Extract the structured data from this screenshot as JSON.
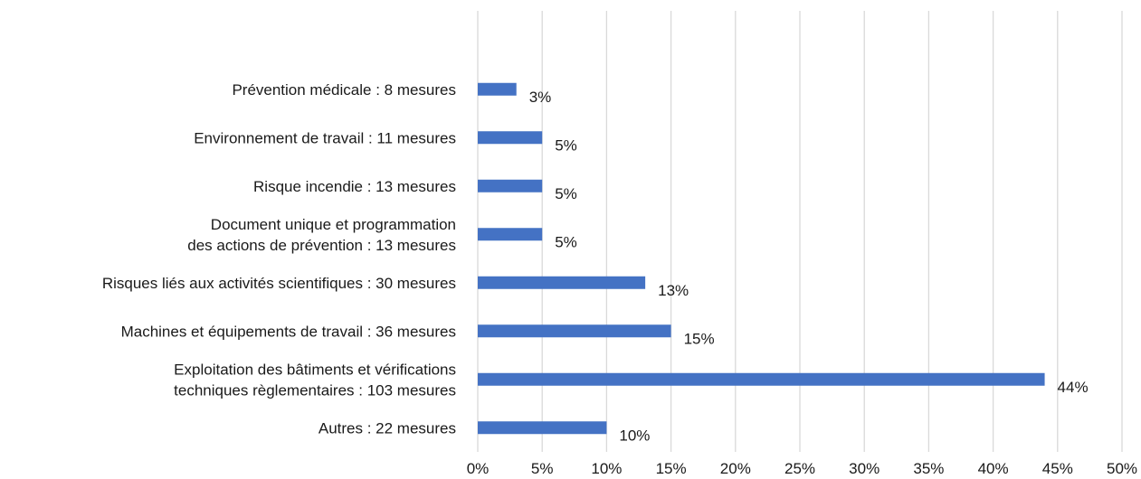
{
  "chart_data": {
    "type": "bar",
    "orientation": "horizontal",
    "categories": [
      [
        "Prévention médicale : 8 mesures"
      ],
      [
        "Environnement de travail : 11 mesures"
      ],
      [
        "Risque incendie : 13 mesures"
      ],
      [
        "Document unique et programmation",
        "des actions de prévention : 13 mesures"
      ],
      [
        "Risques liés aux activités scientifiques : 30 mesures"
      ],
      [
        "Machines et équipements de travail : 36 mesures"
      ],
      [
        "Exploitation des bâtiments et vérifications",
        "techniques règlementaires : 103 mesures"
      ],
      [
        "Autres : 22 mesures"
      ]
    ],
    "values": [
      3,
      5,
      5,
      5,
      13,
      15,
      44,
      10
    ],
    "data_labels": [
      "3%",
      "5%",
      "5%",
      "5%",
      "13%",
      "15%",
      "44%",
      "10%"
    ],
    "xlim": [
      0,
      50
    ],
    "xticks": [
      "0%",
      "5%",
      "10%",
      "15%",
      "20%",
      "25%",
      "30%",
      "35%",
      "40%",
      "45%",
      "50%"
    ],
    "grid": true,
    "bar_color": "#4472c4",
    "title": "",
    "xlabel": "",
    "ylabel": ""
  }
}
